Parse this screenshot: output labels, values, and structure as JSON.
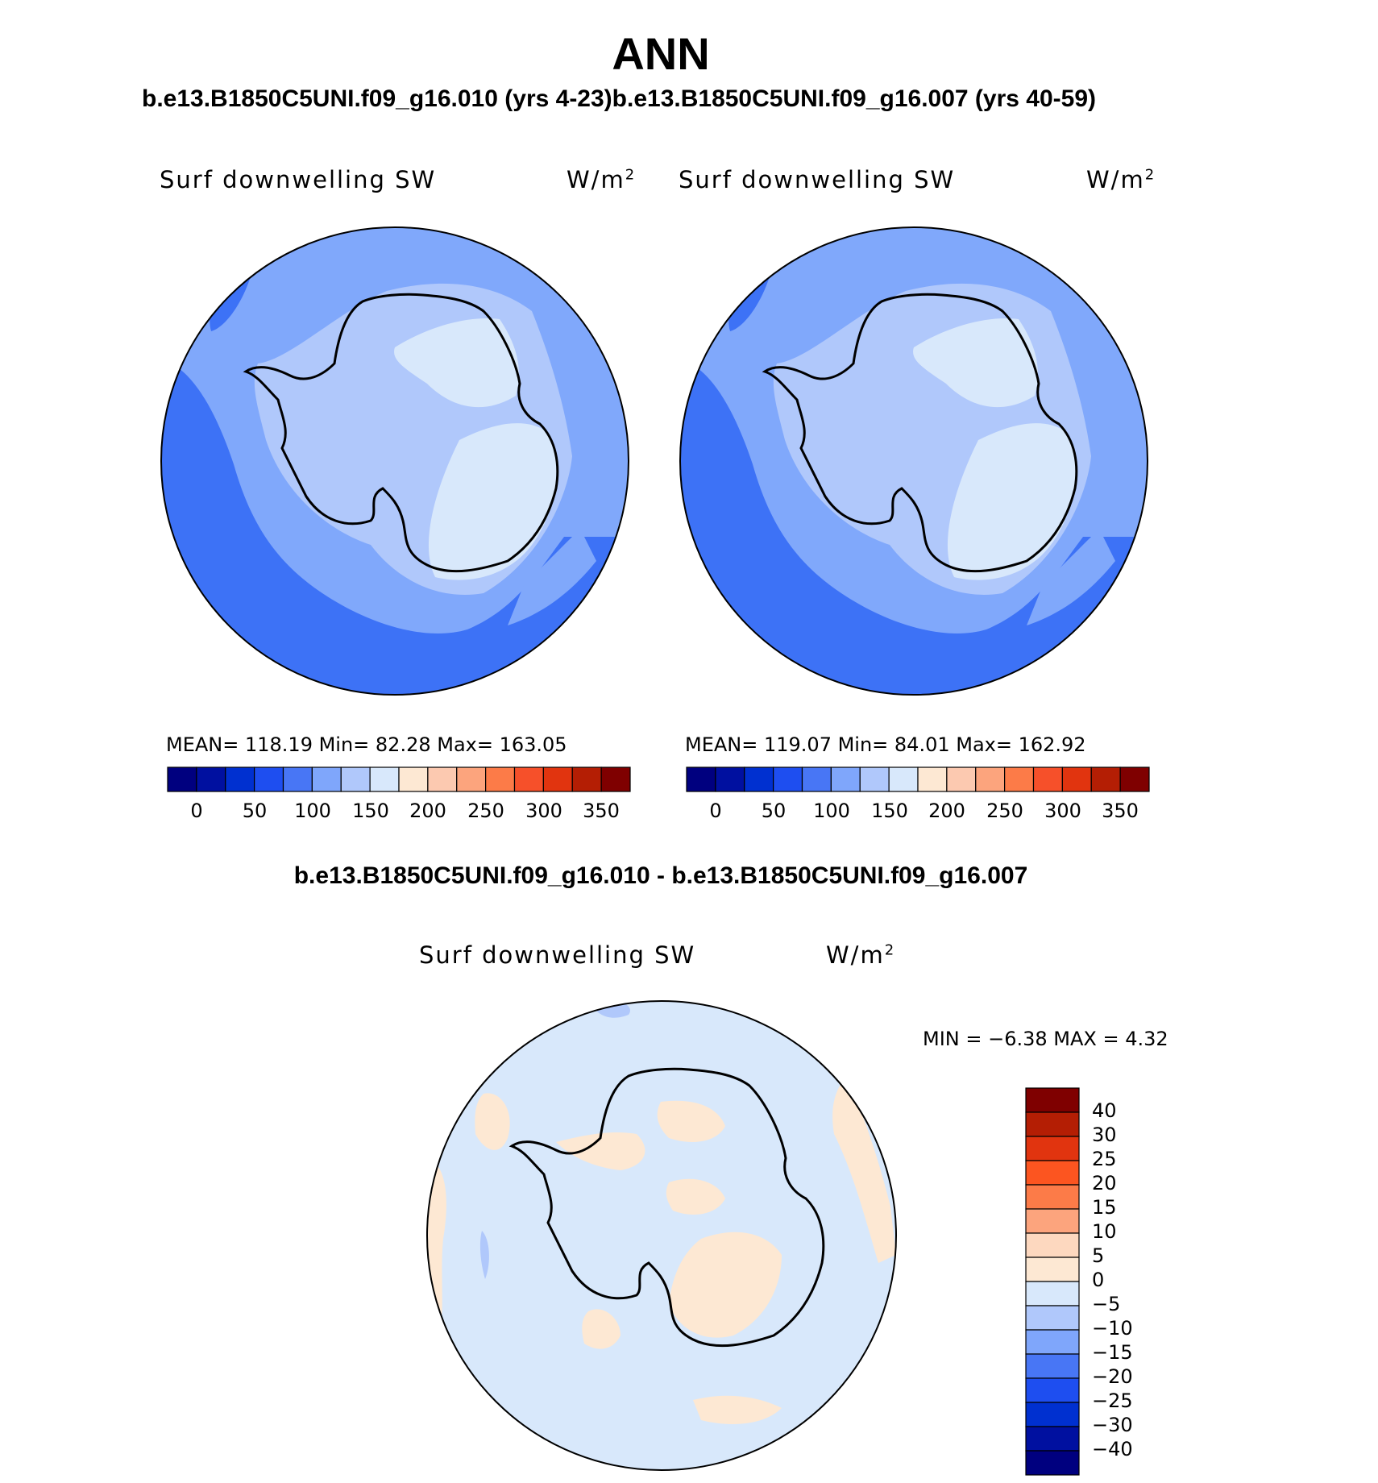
{
  "title": "ANN",
  "subtitle": "b.e13.B1850C5UNI.f09_g16.010 (yrs 4-23)b.e13.B1850C5UNI.f09_g16.007 (yrs 40-59)",
  "diff_title": "b.e13.B1850C5UNI.f09_g16.010 - b.e13.B1850C5UNI.f09_g16.007",
  "panels": [
    {
      "variable": "Surf downwelling SW",
      "units_base": "W/m",
      "units_exp": "2",
      "stats": "MEAN= 118.19   Min=   82.28   Max= 163.05",
      "mean": 118.19,
      "min": 82.28,
      "max": 163.05
    },
    {
      "variable": "Surf downwelling SW",
      "units_base": "W/m",
      "units_exp": "2",
      "stats": "MEAN= 119.07   Min=   84.01   Max= 162.92",
      "mean": 119.07,
      "min": 84.01,
      "max": 162.92
    }
  ],
  "diff_panel": {
    "variable": "Surf downwelling SW",
    "units_base": "W/m",
    "units_exp": "2",
    "stats": "MIN =   −6.38  MAX =     4.32",
    "min": -6.38,
    "max": 4.32
  },
  "field_colorbar": {
    "tick_labels": [
      "0",
      "50",
      "100",
      "150",
      "200",
      "250",
      "300",
      "350"
    ],
    "colors": [
      "#00007f",
      "#0010a0",
      "#0030d0",
      "#1e4ef0",
      "#4876f5",
      "#7fa6fb",
      "#b0c8fb",
      "#d8e8fb",
      "#fde8d3",
      "#fcc9b0",
      "#fca47d",
      "#fc7b48",
      "#f6502a",
      "#e1340f",
      "#b41e04",
      "#7f0000"
    ]
  },
  "diff_colorbar": {
    "tick_labels": [
      "40",
      "30",
      "25",
      "20",
      "15",
      "10",
      "5",
      "0",
      "−5",
      "−10",
      "−15",
      "−20",
      "−25",
      "−30",
      "−40"
    ],
    "colors": [
      "#7f0000",
      "#b41e04",
      "#e1340f",
      "#fc5520",
      "#fc7b48",
      "#fca47d",
      "#fdd8bf",
      "#fde8d3",
      "#d8e8fb",
      "#b0c8fb",
      "#7fa6fb",
      "#4876f5",
      "#1e4ef0",
      "#0030d0",
      "#0010a0",
      "#00007f"
    ]
  },
  "map_colors": {
    "band_low": "#3d72f6",
    "band_mid": "#80a8fb",
    "band_high": "#b0c8fb",
    "band_top": "#d8e8fb",
    "diff_neg": "#d8e8fb",
    "diff_pos": "#fde8d3",
    "diff_neg2": "#b0c8fb"
  }
}
